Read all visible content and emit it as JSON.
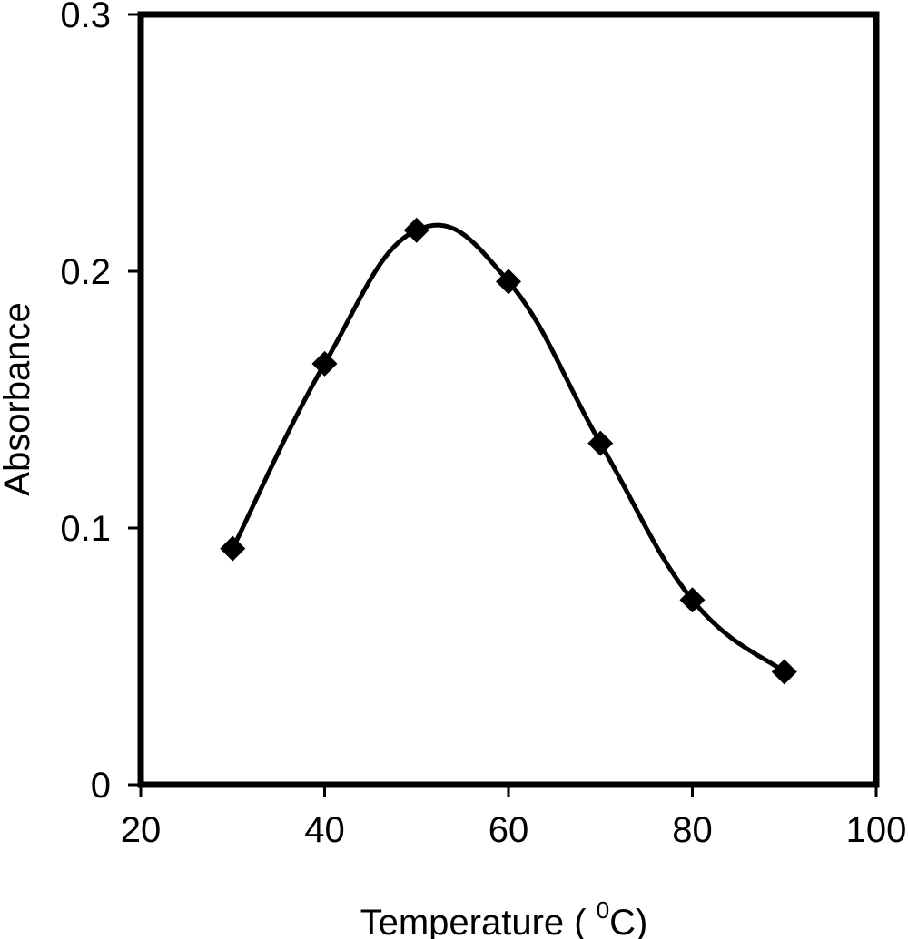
{
  "chart_data": {
    "type": "line",
    "xlabel": "Temperature ( ",
    "xlabel_superscript": "0",
    "xlabel_suffix": "C)",
    "ylabel": "Absorbance",
    "xlim": [
      20,
      100
    ],
    "ylim": [
      0,
      0.3
    ],
    "x_ticks": [
      {
        "value": 20,
        "label": "20"
      },
      {
        "value": 40,
        "label": "40"
      },
      {
        "value": 60,
        "label": "60"
      },
      {
        "value": 80,
        "label": "80"
      },
      {
        "value": 100,
        "label": "100"
      }
    ],
    "y_ticks": [
      {
        "value": 0,
        "label": "0"
      },
      {
        "value": 0.1,
        "label": "0.1"
      },
      {
        "value": 0.2,
        "label": "0.2"
      },
      {
        "value": 0.3,
        "label": "0.3"
      }
    ],
    "series": [
      {
        "marker": "diamond",
        "line": "smooth",
        "color": "#000000",
        "x": [
          30,
          40,
          50,
          60,
          70,
          80,
          90
        ],
        "y": [
          0.092,
          0.164,
          0.216,
          0.196,
          0.133,
          0.072,
          0.044
        ]
      }
    ],
    "grid": false,
    "legend": "none"
  }
}
